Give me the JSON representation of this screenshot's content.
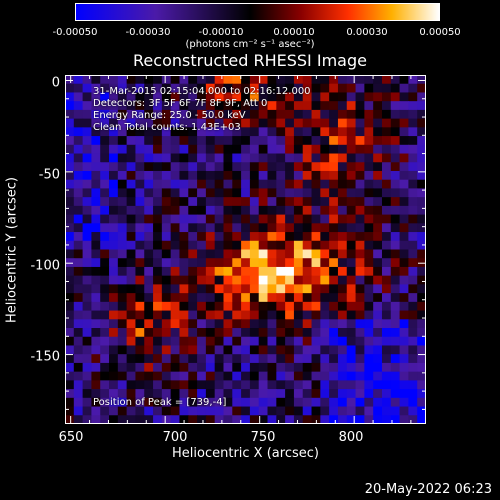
{
  "colorbar": {
    "tick_labels": [
      "-0.00050",
      "-0.00030",
      "-0.00010",
      "0.00010",
      "0.00030",
      "0.00050"
    ],
    "units": "(photons cm⁻² s⁻¹ asec⁻²)",
    "range": [
      -0.0005,
      0.0005
    ]
  },
  "chart_data": {
    "type": "heatmap",
    "title": "Reconstructed RHESSI Image",
    "xlabel": "Heliocentric X (arcsec)",
    "ylabel": "Heliocentric Y (arcsec)",
    "xlim": [
      647,
      838
    ],
    "ylim": [
      -188,
      3
    ],
    "x_ticks": [
      650,
      700,
      750,
      800
    ],
    "y_ticks": [
      0,
      -50,
      -100,
      -150
    ],
    "peak": [
      739,
      -4
    ],
    "colormap": "red-temperature (blue negative, black zero, red-yellow-white positive)"
  },
  "annotations": {
    "time": "31-Mar-2015 02:15:04.000 to 02:16:12.000",
    "detectors": "Detectors: 3F 5F 6F 7F 8F 9F, Att 0",
    "energy": "Energy Range: 25.0 - 50.0 keV",
    "method": "Clean    Total counts: 1.43E+03",
    "peak_text": "Position of Peak = [739,-4]"
  },
  "footer": {
    "date": "20-May-2022 06:23"
  }
}
